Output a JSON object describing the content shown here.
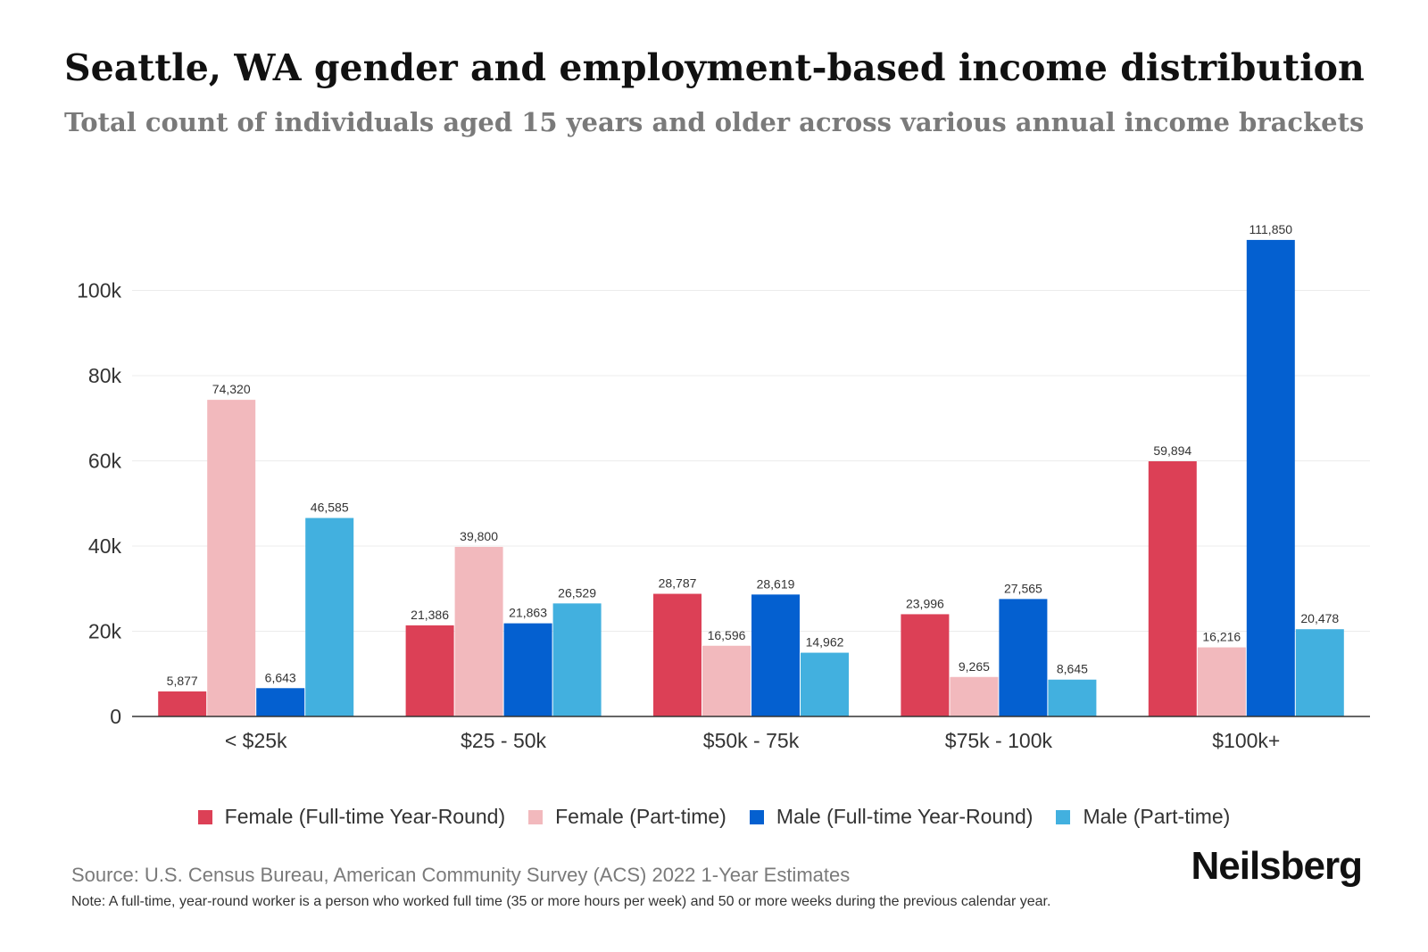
{
  "chart_data": {
    "type": "bar",
    "title": "Seattle, WA gender and employment-based income distribution",
    "subtitle": "Total count of individuals aged 15 years and older across various annual income brackets",
    "categories": [
      "< $25k",
      "$25 - 50k",
      "$50k - 75k",
      "$75k - 100k",
      "$100k+"
    ],
    "series": [
      {
        "name": "Female (Full-time Year-Round)",
        "color": "#dc4056",
        "values": [
          5877,
          21386,
          28787,
          23996,
          59894
        ]
      },
      {
        "name": "Female (Part-time)",
        "color": "#f2b9bd",
        "values": [
          74320,
          39800,
          16596,
          9265,
          16216
        ]
      },
      {
        "name": "Male (Full-time Year-Round)",
        "color": "#0460d0",
        "values": [
          6643,
          21863,
          28619,
          27565,
          111850
        ]
      },
      {
        "name": "Male (Part-time)",
        "color": "#42b0df",
        "values": [
          46585,
          26529,
          14962,
          8645,
          20478
        ]
      }
    ],
    "yticks": [
      0,
      20000,
      40000,
      60000,
      80000,
      100000
    ],
    "ytick_labels": [
      "0",
      "20k",
      "40k",
      "60k",
      "80k",
      "100k"
    ],
    "ylim": [
      0,
      120000
    ],
    "xlabel": "",
    "ylabel": "",
    "grid": true,
    "legend_position": "bottom"
  },
  "source": "Source: U.S. Census Bureau, American Community Survey (ACS) 2022 1-Year Estimates",
  "note": "Note: A full-time, year-round worker is a person who worked full time (35 or more hours per week) and 50 or more weeks during the previous calendar year.",
  "brand": "Neilsberg"
}
